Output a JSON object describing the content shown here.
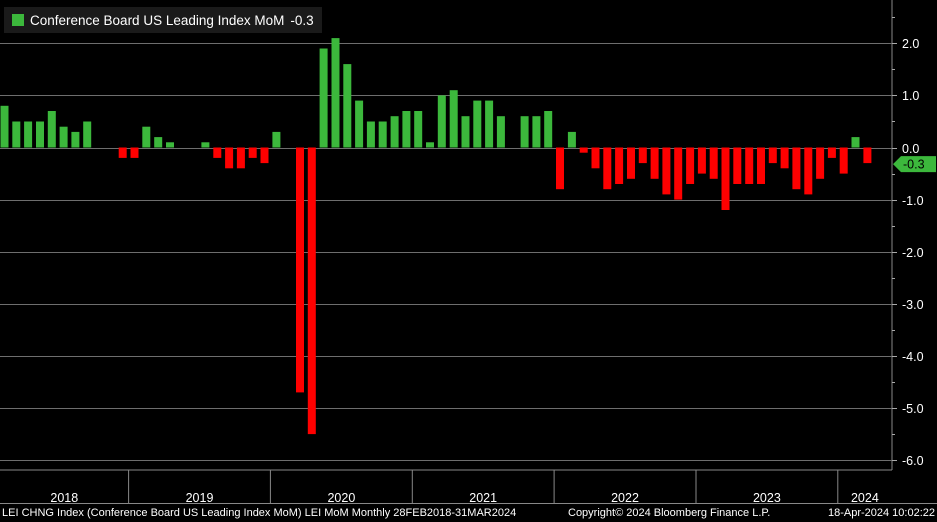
{
  "colors": {
    "positive": "#3cb83c",
    "negative": "#ff0000",
    "background": "#000000",
    "grid": "#6e6e6e"
  },
  "legend": {
    "label": "Conference Board US Leading Index MoM",
    "last_value": "-0.3"
  },
  "footer": {
    "left": "LEI CHNG Index (Conference Board US Leading Index MoM) LEI MoM  Monthly 28FEB2018-31MAR2024",
    "center": "Copyright© 2024 Bloomberg Finance L.P.",
    "right": "18-Apr-2024 10:02:22"
  },
  "chart_data": {
    "type": "bar",
    "title": "Conference Board US Leading Index MoM",
    "start": "2018-02",
    "end": "2024-03",
    "frequency": "Monthly",
    "ylim": [
      -6.2,
      2.6
    ],
    "yticks": [
      2.0,
      1.0,
      0.0,
      -1.0,
      -2.0,
      -3.0,
      -4.0,
      -5.0,
      -6.0
    ],
    "ytick_labels": [
      "2.0",
      "1.0",
      "0.0",
      "-1.0",
      "-2.0",
      "-3.0",
      "-4.0",
      "-5.0",
      "-6.0"
    ],
    "year_labels": [
      "2018",
      "2019",
      "2020",
      "2021",
      "2022",
      "2023",
      "2024"
    ],
    "last_value_label": "-0.3",
    "values": [
      0.8,
      0.5,
      0.5,
      0.5,
      0.7,
      0.4,
      0.3,
      0.5,
      0.0,
      0.0,
      -0.2,
      -0.2,
      0.4,
      0.2,
      0.1,
      0.0,
      0.0,
      0.1,
      -0.2,
      -0.4,
      -0.4,
      -0.2,
      -0.3,
      0.3,
      0.0,
      -4.7,
      -5.5,
      1.9,
      2.1,
      1.6,
      0.9,
      0.5,
      0.5,
      0.6,
      0.7,
      0.7,
      0.1,
      1.0,
      1.1,
      0.6,
      0.9,
      0.9,
      0.6,
      0.0,
      0.6,
      0.6,
      0.7,
      -0.8,
      0.3,
      -0.1,
      -0.4,
      -0.8,
      -0.7,
      -0.6,
      -0.3,
      -0.6,
      -0.9,
      -1.0,
      -0.7,
      -0.5,
      -0.6,
      -1.2,
      -0.7,
      -0.7,
      -0.7,
      -0.3,
      -0.4,
      -0.8,
      -0.9,
      -0.6,
      -0.2,
      -0.5,
      0.2,
      -0.3
    ]
  }
}
